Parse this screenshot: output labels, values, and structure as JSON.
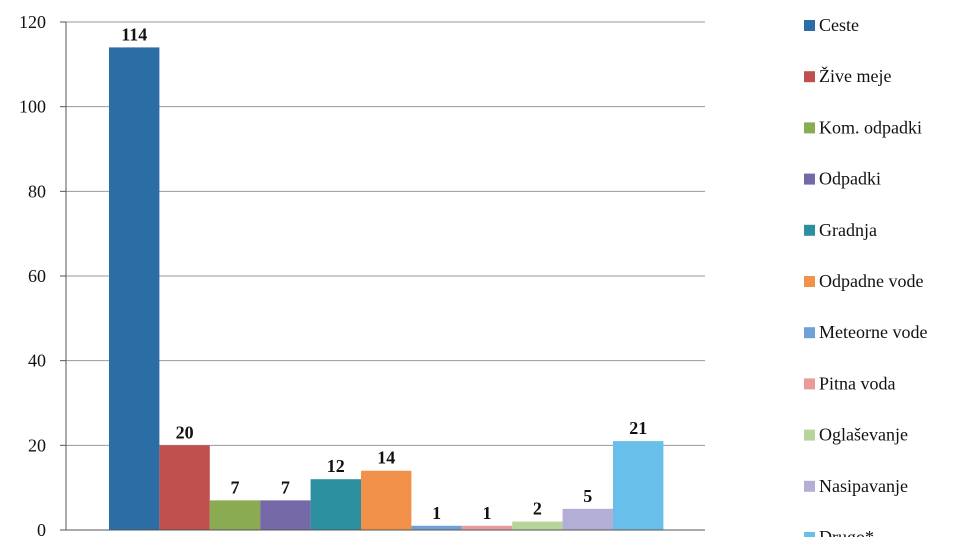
{
  "chart_data": {
    "type": "bar",
    "categories": [
      "Ceste",
      "Žive meje",
      "Kom. odpadki",
      "Odpadki",
      "Gradnja",
      "Odpadne vode",
      "Meteorne vode",
      "Pitna voda",
      "Oglaševanje",
      "Nasipavanje",
      "Drugo*"
    ],
    "values": [
      114,
      20,
      7,
      7,
      12,
      14,
      1,
      1,
      2,
      5,
      21
    ],
    "colors": [
      "#2b6ea6",
      "#c0504d",
      "#8aab52",
      "#7468a6",
      "#2b8fa0",
      "#f2914a",
      "#6fa0d8",
      "#e99a9a",
      "#b7d59a",
      "#b3aed6",
      "#68bfe9"
    ],
    "ylim": [
      0,
      120
    ],
    "yticks": [
      "0",
      "20",
      "40",
      "60",
      "80",
      "100",
      "120"
    ],
    "grid": true,
    "legend": "right"
  }
}
